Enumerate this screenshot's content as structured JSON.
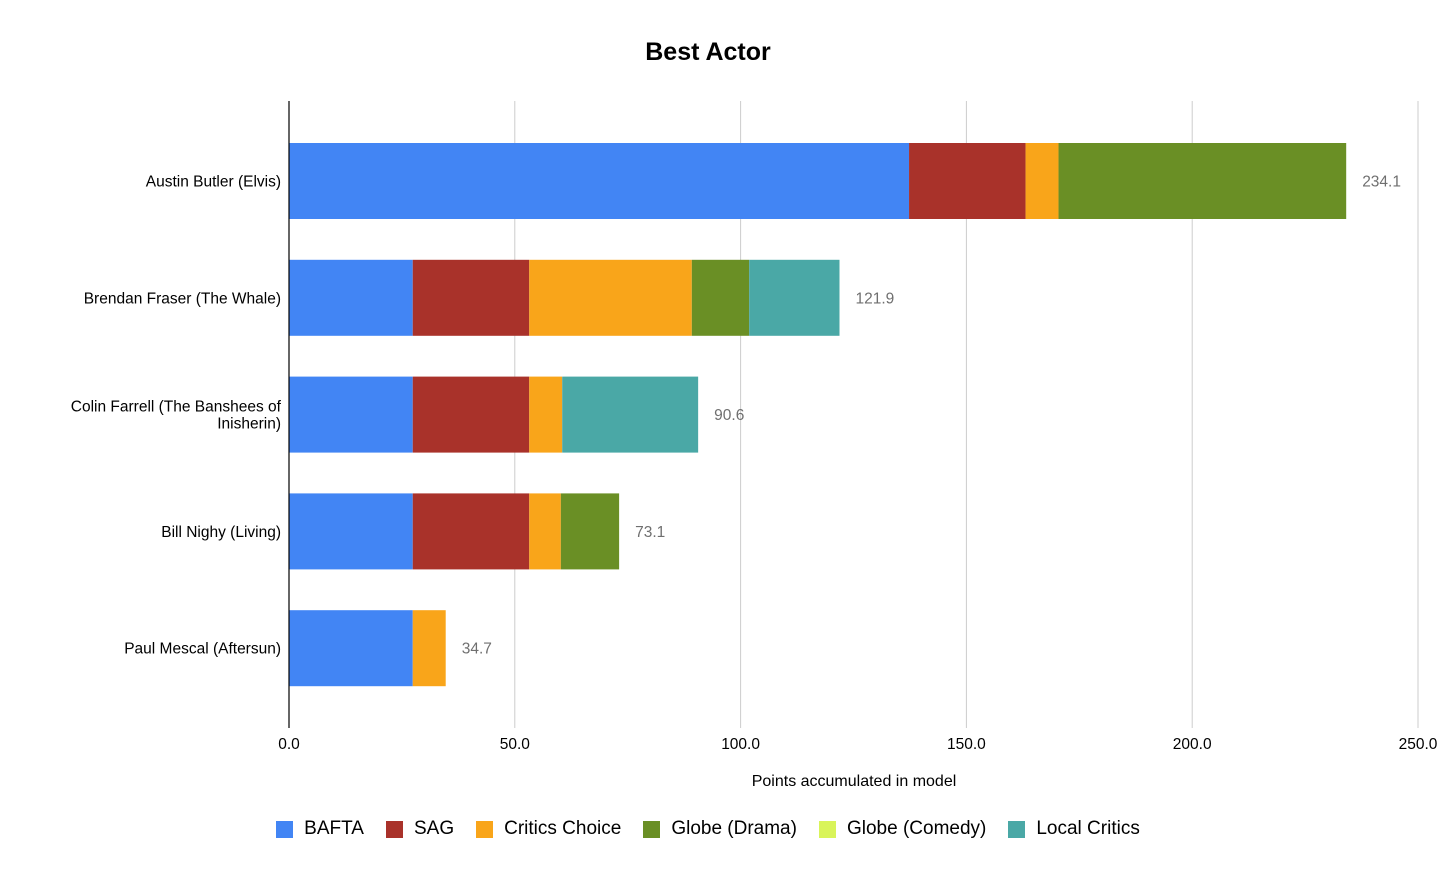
{
  "chart_data": {
    "type": "bar",
    "orientation": "horizontal",
    "stacked": true,
    "title": "Best Actor",
    "xlabel": "Points accumulated in model",
    "ylabel": "",
    "xlim": [
      0,
      250
    ],
    "ticks": [
      "0.0",
      "50.0",
      "100.0",
      "150.0",
      "200.0",
      "250.0"
    ],
    "tick_values": [
      0,
      50,
      100,
      150,
      200,
      250
    ],
    "grid": true,
    "legend_position": "bottom",
    "categories": [
      [
        "Austin Butler (Elvis)"
      ],
      [
        "Brendan Fraser (The Whale)"
      ],
      [
        "Colin Farrell (The Banshees of",
        "Inisherin)"
      ],
      [
        "Bill Nighy (Living)"
      ],
      [
        "Paul Mescal (Aftersun)"
      ]
    ],
    "series": [
      {
        "name": "BAFTA",
        "color": "#4285f4",
        "values": [
          137.3,
          27.4,
          27.4,
          27.4,
          27.4
        ]
      },
      {
        "name": "SAG",
        "color": "#a9322a",
        "values": [
          25.8,
          25.8,
          25.8,
          25.8,
          0
        ]
      },
      {
        "name": "Critics Choice",
        "color": "#f9a51a",
        "values": [
          7.3,
          36.0,
          7.3,
          7.0,
          7.3
        ]
      },
      {
        "name": "Globe (Drama)",
        "color": "#6a8f25",
        "values": [
          63.7,
          12.7,
          0,
          12.9,
          0
        ]
      },
      {
        "name": "Globe (Comedy)",
        "color": "#d9f45a",
        "values": [
          0,
          0,
          0,
          0,
          0
        ]
      },
      {
        "name": "Local Critics",
        "color": "#4aa8a6",
        "values": [
          0,
          20.0,
          30.1,
          0,
          0
        ]
      }
    ],
    "totals": [
      "234.1",
      "121.9",
      "90.6",
      "73.1",
      "34.7"
    ]
  }
}
